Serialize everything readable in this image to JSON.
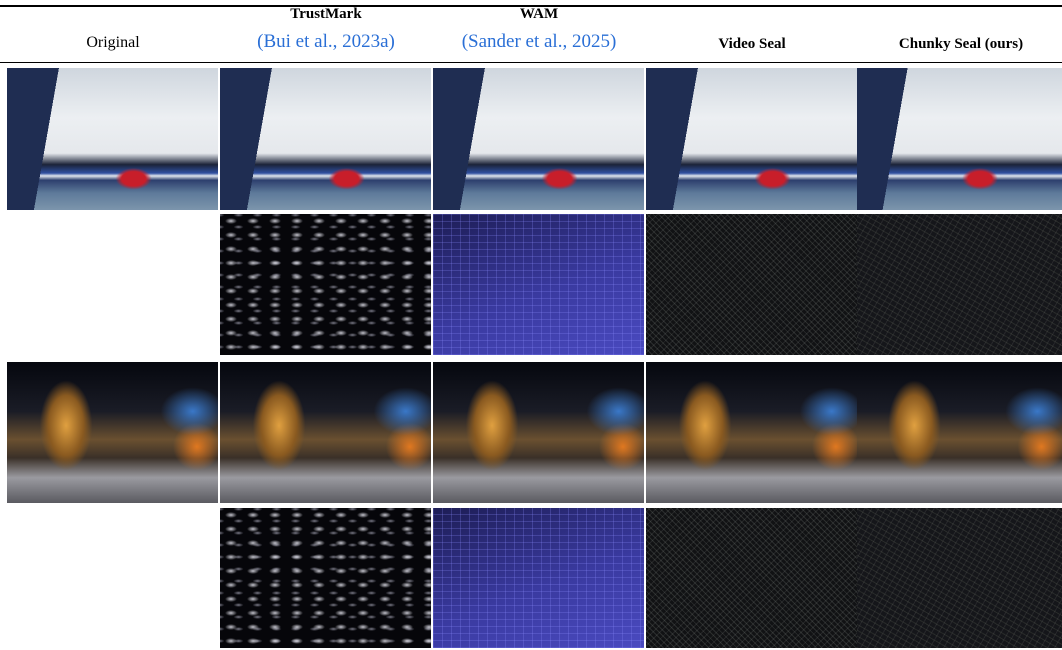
{
  "header": {
    "columns": [
      {
        "title": "Original"
      },
      {
        "title": "TrustMark",
        "citation": "(Bui et al., 2023a)"
      },
      {
        "title": "WAM",
        "citation": "(Sander et al., 2025)"
      },
      {
        "title": "Video Seal"
      },
      {
        "title": "Chunky Seal (ours)"
      }
    ]
  }
}
